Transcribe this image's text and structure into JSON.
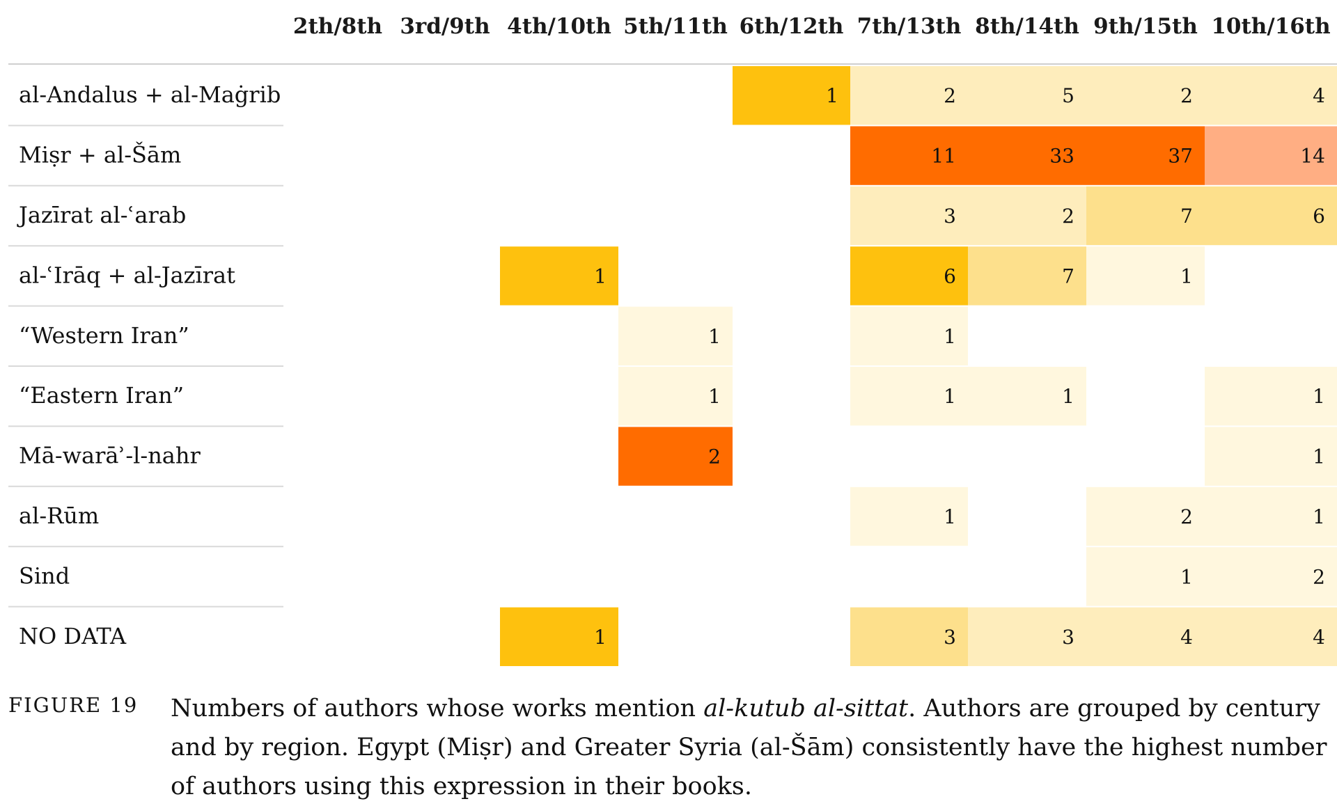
{
  "chart_data": {
    "type": "heatmap",
    "columns": [
      "2th/8th",
      "3rd/9th",
      "4th/10th",
      "5th/11th",
      "6th/12th",
      "7th/13th",
      "8th/14th",
      "9th/15th",
      "10th/16th"
    ],
    "rows": [
      {
        "label": "al-Andalus + al-Maġrib",
        "values": [
          null,
          null,
          null,
          null,
          1,
          2,
          5,
          2,
          4
        ]
      },
      {
        "label": "Miṣr + al-Šām",
        "values": [
          null,
          null,
          null,
          null,
          null,
          11,
          33,
          37,
          14
        ]
      },
      {
        "label": "Jazīrat al-ʿarab",
        "values": [
          null,
          null,
          null,
          null,
          null,
          3,
          2,
          7,
          6
        ]
      },
      {
        "label": "al-ʿIrāq + al-Jazīrat",
        "values": [
          null,
          null,
          1,
          null,
          null,
          6,
          7,
          1,
          null
        ]
      },
      {
        "label": "“Western Iran”",
        "values": [
          null,
          null,
          null,
          1,
          null,
          1,
          null,
          null,
          null
        ]
      },
      {
        "label": "“Eastern Iran”",
        "values": [
          null,
          null,
          null,
          1,
          null,
          1,
          1,
          null,
          1
        ]
      },
      {
        "label": "Mā-warāʾ-l-nahr",
        "values": [
          null,
          null,
          null,
          2,
          null,
          null,
          null,
          null,
          1
        ]
      },
      {
        "label": "al-Rūm",
        "values": [
          null,
          null,
          null,
          null,
          null,
          1,
          null,
          2,
          1
        ]
      },
      {
        "label": "Sind",
        "values": [
          null,
          null,
          null,
          null,
          null,
          null,
          null,
          1,
          2
        ]
      },
      {
        "label": "NO DATA",
        "values": [
          null,
          null,
          1,
          null,
          null,
          3,
          3,
          4,
          4
        ]
      }
    ],
    "colors": {
      "palette": [
        "#FFF7DE",
        "#FEEDBC",
        "#FDE08C",
        "#FEC10E",
        "#FF6C00",
        "#FFAE83"
      ],
      "row_divider": "#D9D9D9",
      "header_rule": "#CFCFCF"
    }
  },
  "caption": {
    "figure_label": "FIGURE 19",
    "text_before": "Numbers of authors whose works mention ",
    "text_italic": "al-kutub al-sittat",
    "text_after": ". Authors are grouped by century and by region. Egypt (Miṣr) and Greater Syria (al-Šām) consistently have the highest number of authors using this expression in their books."
  }
}
